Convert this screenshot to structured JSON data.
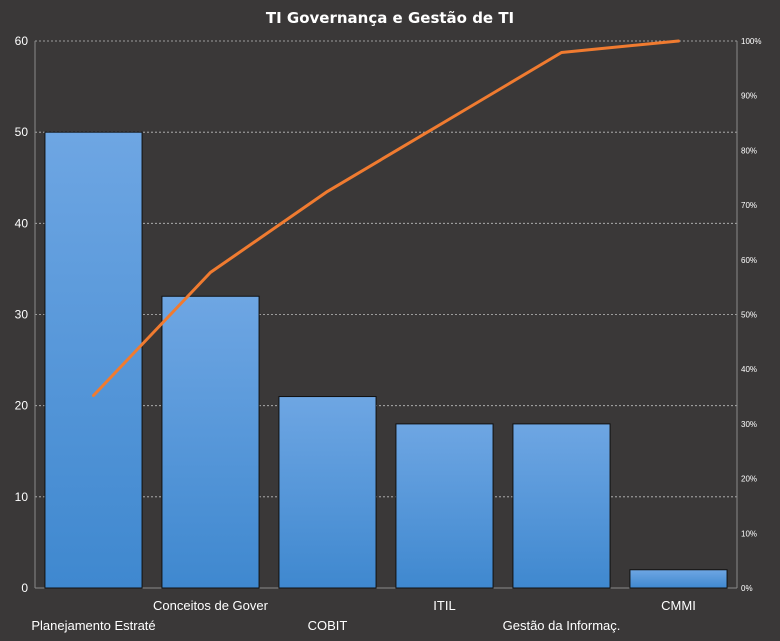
{
  "chart_data": {
    "type": "bar",
    "title": "TI Governança e Gestão de TI",
    "categories": [
      "Planejamento Estraté",
      "Conceitos de Gover",
      "COBIT",
      "ITIL",
      "Gestão da Informaç.",
      "CMMI"
    ],
    "series": [
      {
        "values": [
          50,
          32,
          21,
          18,
          18,
          2
        ]
      }
    ],
    "cumulative_line": {
      "type": "line",
      "values": [
        35.2,
        57.7,
        72.5,
        85.2,
        97.9,
        100
      ]
    },
    "ylim": [
      0,
      60
    ],
    "y_ticks": [
      "0",
      "10",
      "20",
      "30",
      "40",
      "50",
      "60"
    ],
    "y2lim": [
      0,
      100
    ],
    "y2_ticks": [
      "0%",
      "10%",
      "20%",
      "30%",
      "40%",
      "50%",
      "60%",
      "70%",
      "80%",
      "90%",
      "100%"
    ],
    "grid": true,
    "legend": "none",
    "colors": {
      "background": "#3a3838",
      "bar_top": "#6ea6e3",
      "bar_bottom": "#3f88cf",
      "bar_edge": "#111111",
      "line": "#f07b30",
      "grid": "#bdbdbd",
      "text": "#ffffff"
    }
  }
}
